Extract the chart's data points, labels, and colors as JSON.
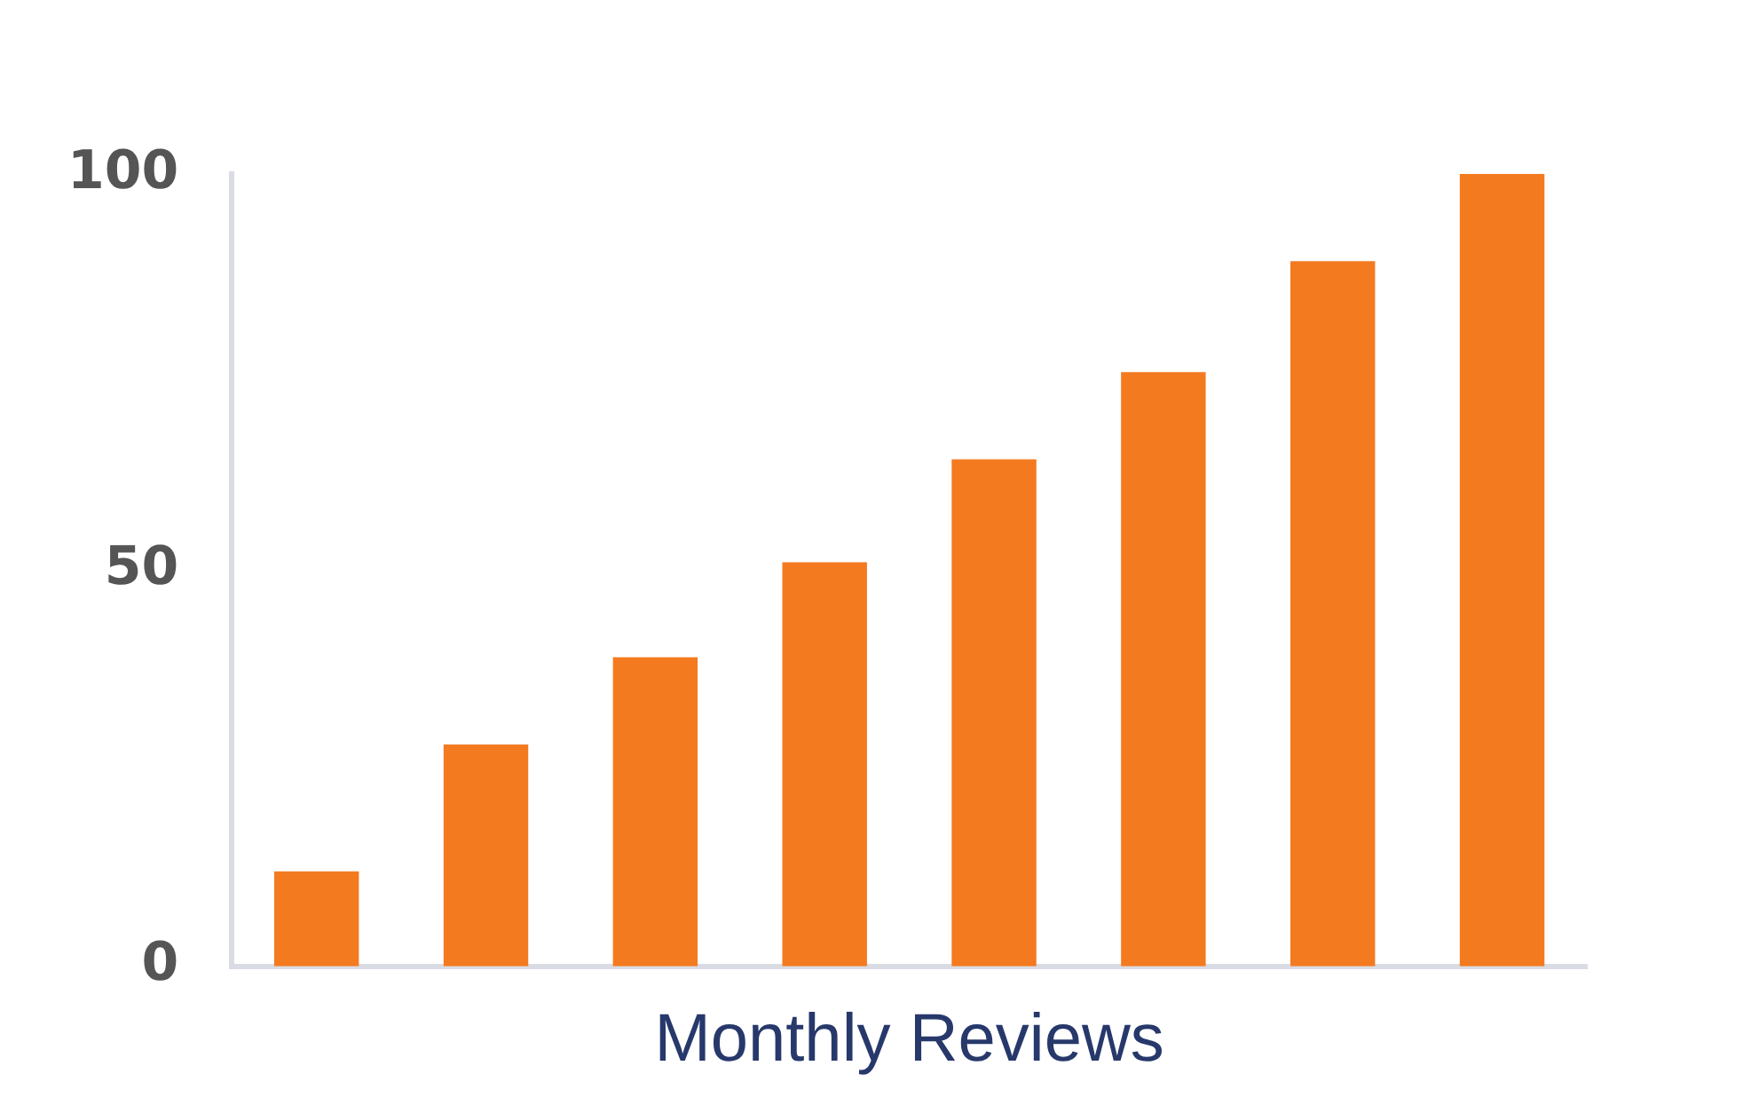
{
  "chart_data": {
    "type": "bar",
    "xlabel": "Monthly Reviews",
    "categories": [
      null,
      null,
      null,
      null,
      null,
      null,
      null,
      null
    ],
    "values": [
      12,
      28,
      39,
      51,
      64,
      75,
      89,
      100
    ],
    "color": "#f47a20",
    "ylim": [
      0,
      100
    ],
    "yticks": [
      0,
      50,
      100
    ],
    "grid": false,
    "legend": false
  }
}
